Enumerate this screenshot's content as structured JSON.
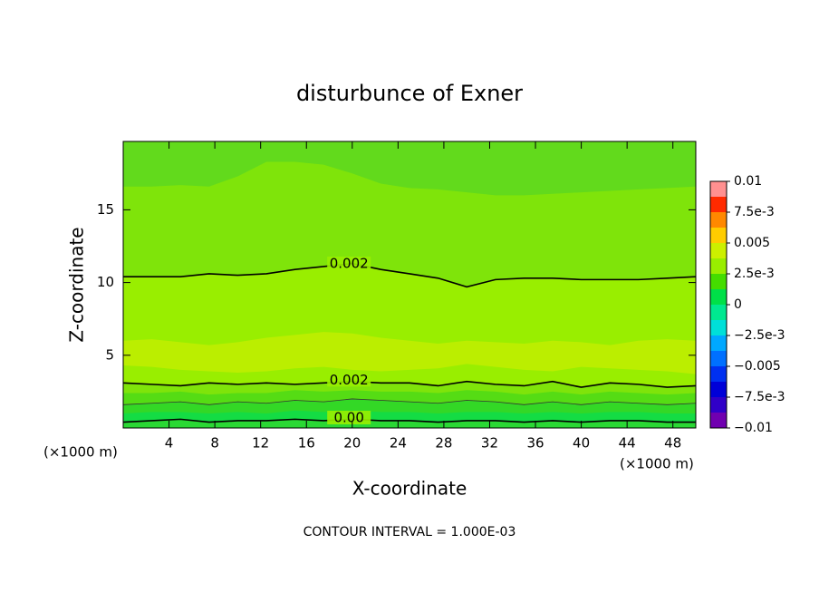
{
  "chart_data": {
    "type": "contour",
    "title": "disturbunce of Exner",
    "xlabel": "X-coordinate",
    "ylabel": "Z-coordinate",
    "x_unit": "(×1000 m)",
    "y_unit": "(×1000 m)",
    "footer": "CONTOUR INTERVAL = 1.000E-03",
    "xlim": [
      0,
      50
    ],
    "ylim": [
      0,
      19.7
    ],
    "xticks": [
      4,
      8,
      12,
      16,
      20,
      24,
      28,
      32,
      36,
      40,
      44,
      48
    ],
    "yticks": [
      5,
      10,
      15
    ],
    "x": [
      0,
      2.5,
      5,
      7.5,
      10,
      12.5,
      15,
      17.5,
      20,
      22.5,
      25,
      27.5,
      30,
      32.5,
      35,
      37.5,
      40,
      42.5,
      45,
      47.5,
      50
    ],
    "fills": [
      {
        "color": "#62da1c"
      },
      {
        "color": "#7fe40a",
        "z": [
          16.6,
          16.6,
          16.7,
          16.6,
          17.3,
          18.3,
          18.3,
          18.1,
          17.5,
          16.8,
          16.5,
          16.4,
          16.2,
          16.0,
          16.0,
          16.1,
          16.2,
          16.3,
          16.4,
          16.5,
          16.6
        ]
      },
      {
        "color": "#99ee00",
        "z": [
          10.4,
          10.4,
          10.4,
          10.6,
          10.5,
          10.6,
          10.9,
          11.1,
          11.3,
          10.9,
          10.6,
          10.3,
          9.7,
          10.2,
          10.3,
          10.3,
          10.2,
          10.2,
          10.2,
          10.3,
          10.4
        ]
      },
      {
        "color": "#bbee00",
        "z": [
          6.0,
          6.1,
          5.9,
          5.7,
          5.9,
          6.2,
          6.4,
          6.6,
          6.5,
          6.2,
          6.0,
          5.8,
          6.0,
          5.9,
          5.8,
          6.0,
          5.9,
          5.7,
          6.0,
          6.1,
          6.0
        ]
      },
      {
        "color": "#99ee00",
        "z": [
          4.3,
          4.2,
          4.0,
          3.9,
          3.8,
          3.9,
          4.1,
          4.2,
          4.0,
          3.9,
          4.0,
          4.1,
          4.4,
          4.2,
          4.0,
          3.9,
          4.2,
          4.1,
          4.0,
          3.9,
          3.7
        ]
      },
      {
        "color": "#7fe40a",
        "z": [
          3.1,
          3.0,
          2.9,
          3.1,
          3.0,
          3.1,
          3.0,
          3.1,
          3.2,
          3.1,
          3.1,
          2.9,
          3.2,
          3.0,
          2.9,
          3.2,
          2.8,
          3.1,
          3.0,
          2.8,
          2.9
        ]
      },
      {
        "color": "#55dc14",
        "z": [
          2.4,
          2.4,
          2.5,
          2.3,
          2.4,
          2.4,
          2.6,
          2.5,
          2.6,
          2.5,
          2.5,
          2.4,
          2.6,
          2.5,
          2.3,
          2.5,
          2.3,
          2.5,
          2.4,
          2.3,
          2.4
        ]
      },
      {
        "color": "#33d826",
        "z": [
          1.6,
          1.7,
          1.8,
          1.6,
          1.8,
          1.7,
          1.9,
          1.8,
          2.0,
          1.9,
          1.8,
          1.7,
          1.9,
          1.8,
          1.6,
          1.8,
          1.6,
          1.8,
          1.7,
          1.6,
          1.7
        ]
      },
      {
        "color": "#14dc44",
        "z": [
          1.0,
          1.1,
          1.1,
          1.0,
          1.1,
          1.0,
          1.2,
          1.1,
          1.2,
          1.1,
          1.1,
          1.0,
          1.1,
          1.1,
          1.0,
          1.1,
          1.0,
          1.1,
          1.1,
          1.0,
          1.0
        ]
      },
      {
        "color": "#2ad834",
        "z": [
          0.4,
          0.5,
          0.6,
          0.4,
          0.5,
          0.5,
          0.6,
          0.5,
          0.6,
          0.5,
          0.5,
          0.4,
          0.5,
          0.5,
          0.4,
          0.5,
          0.4,
          0.5,
          0.5,
          0.4,
          0.4
        ]
      }
    ],
    "contours": [
      {
        "label": "0.002",
        "z": [
          10.4,
          10.4,
          10.4,
          10.6,
          10.5,
          10.6,
          10.9,
          11.1,
          11.3,
          10.9,
          10.6,
          10.3,
          9.7,
          10.2,
          10.3,
          10.3,
          10.2,
          10.2,
          10.2,
          10.3,
          10.4
        ]
      },
      {
        "label": "0.002",
        "z": [
          3.1,
          3.0,
          2.9,
          3.1,
          3.0,
          3.1,
          3.0,
          3.1,
          3.2,
          3.1,
          3.1,
          2.9,
          3.2,
          3.0,
          2.9,
          3.2,
          2.8,
          3.1,
          3.0,
          2.8,
          2.9
        ]
      },
      {
        "z": [
          1.6,
          1.7,
          1.8,
          1.6,
          1.8,
          1.7,
          1.9,
          1.8,
          2.0,
          1.9,
          1.8,
          1.7,
          1.9,
          1.8,
          1.6,
          1.8,
          1.6,
          1.8,
          1.7,
          1.6,
          1.7
        ]
      },
      {
        "label": "0.00",
        "z": [
          0.4,
          0.5,
          0.6,
          0.4,
          0.5,
          0.5,
          0.6,
          0.5,
          0.6,
          0.5,
          0.5,
          0.4,
          0.5,
          0.5,
          0.4,
          0.5,
          0.4,
          0.5,
          0.5,
          0.4,
          0.4
        ]
      }
    ],
    "colorbar": {
      "levels": [
        -0.01,
        -0.00875,
        -0.0075,
        -0.00625,
        -0.005,
        -0.00375,
        -0.0025,
        -0.00125,
        0,
        0.00125,
        0.0025,
        0.00375,
        0.005,
        0.00625,
        0.0075,
        0.00875,
        0.01
      ],
      "colors": [
        "#7000b0",
        "#3000c8",
        "#0000d8",
        "#0030f0",
        "#0070ff",
        "#00a8ff",
        "#00e0d8",
        "#00e890",
        "#00e048",
        "#44dd00",
        "#99ee00",
        "#ccf000",
        "#ffcc00",
        "#ff8800",
        "#ff2a00",
        "#ff9090"
      ],
      "ticks": [
        0.01,
        {
          "value": 0.0075,
          "label": "7.5e-3"
        },
        0.005,
        {
          "value": 0.0025,
          "label": "2.5e-3"
        },
        0,
        {
          "value": -0.0025,
          "label": "−2.5e-3"
        },
        {
          "value": -0.005,
          "label": "−0.005"
        },
        {
          "value": -0.0075,
          "label": "−7.5e-3"
        },
        {
          "value": -0.01,
          "label": "−0.01"
        }
      ]
    }
  }
}
